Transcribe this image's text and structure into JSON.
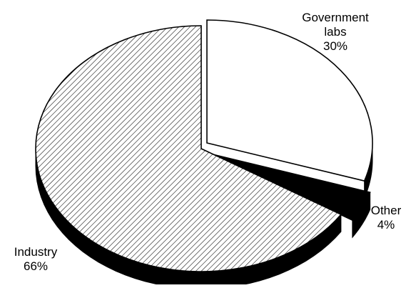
{
  "chart_data": {
    "type": "pie",
    "style": "3d-exploded",
    "title": "",
    "slices": [
      {
        "label_lines": [
          "Government",
          "labs"
        ],
        "pct_label": "30%",
        "value": 30,
        "fill": "white"
      },
      {
        "label_lines": [
          "Other"
        ],
        "pct_label": "4%",
        "value": 4,
        "fill": "black"
      },
      {
        "label_lines": [
          "Industry"
        ],
        "pct_label": "66%",
        "value": 66,
        "fill": "diagonal-hatch"
      }
    ]
  },
  "colors": {
    "ink": "#000000",
    "paper": "#ffffff"
  }
}
